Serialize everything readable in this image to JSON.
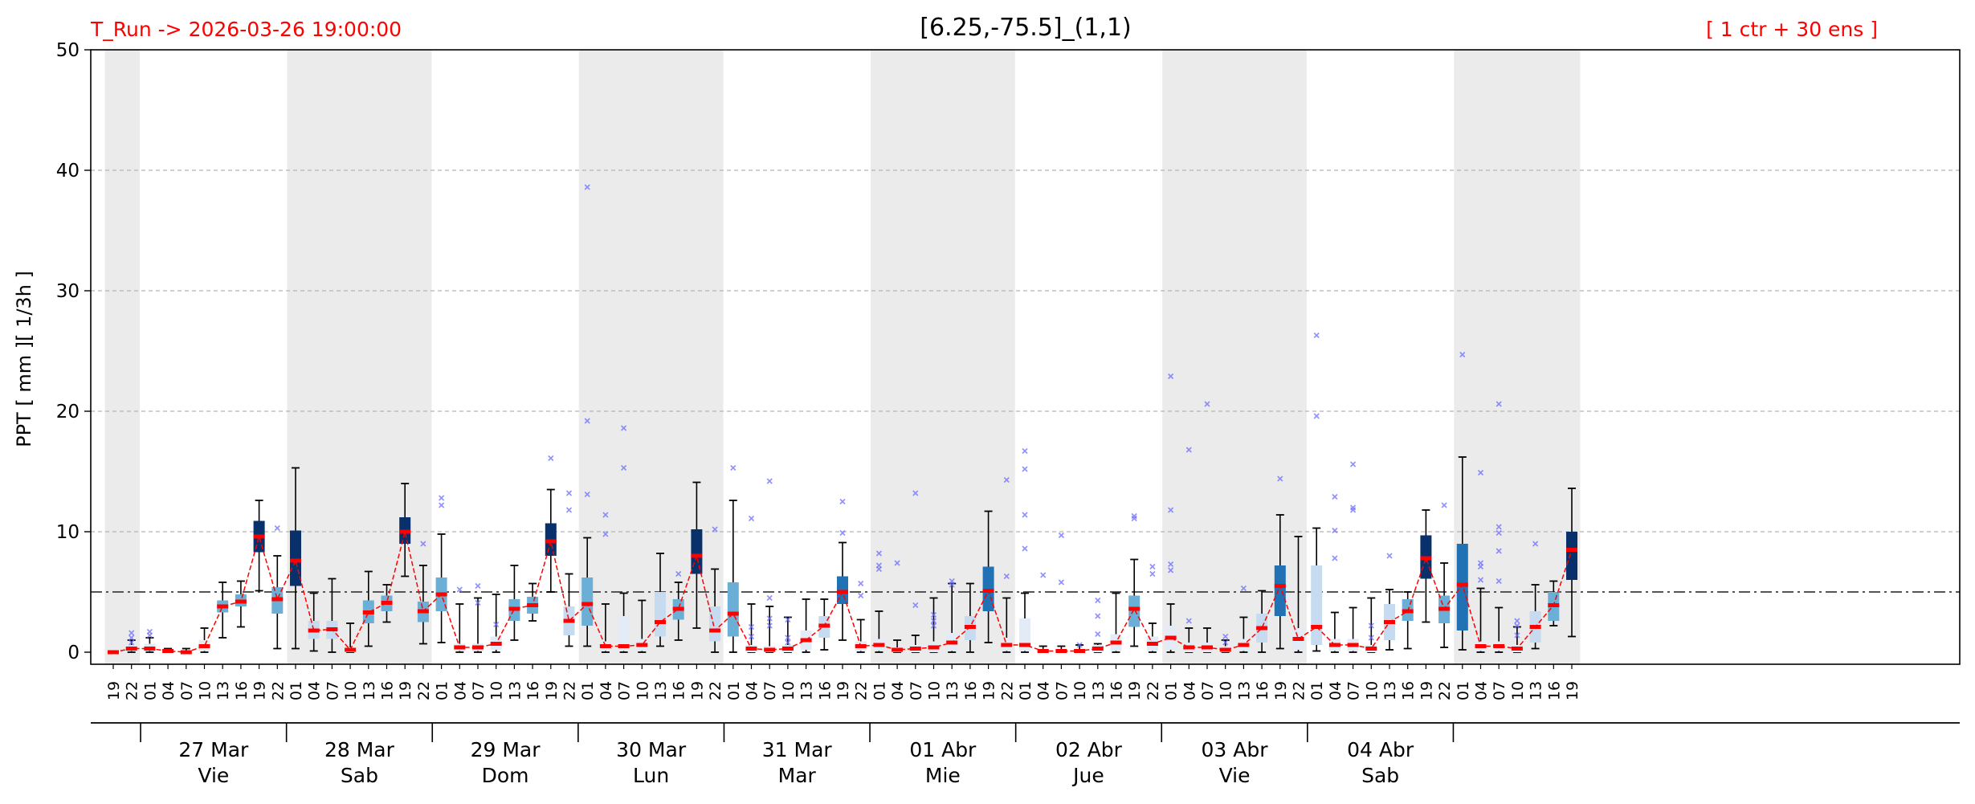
{
  "header": {
    "run_label": "T_Run -> 2026-03-26  19:00:00",
    "title": "[6.25,-75.5]_(1,1)",
    "ensemble_label": "[ 1 ctr + 30 ens ]"
  },
  "colors": {
    "run_label": "#ff0000",
    "night_shade": "#ebebeb",
    "median_line": "#ff0000",
    "outlier": "#6b6bff",
    "threshold": "#555555"
  },
  "chart_data": {
    "type": "box",
    "ylabel": "PPT  [ mm ][ 1/3h ]",
    "ylim": [
      -1,
      50
    ],
    "yticks": [
      0,
      10,
      20,
      30,
      40,
      50
    ],
    "threshold": 5,
    "grid": "horizontal-dashed",
    "hours": [
      "19",
      "22",
      "01",
      "04",
      "07",
      "10",
      "13",
      "16",
      "19",
      "22",
      "01",
      "04",
      "07",
      "10",
      "13",
      "16",
      "19",
      "22",
      "01",
      "04",
      "07",
      "10",
      "13",
      "16",
      "19",
      "22",
      "01",
      "04",
      "07",
      "10",
      "13",
      "16",
      "19",
      "22",
      "01",
      "04",
      "07",
      "10",
      "13",
      "16",
      "19",
      "22",
      "01",
      "04",
      "07",
      "10",
      "13",
      "16",
      "19",
      "22",
      "01",
      "04",
      "07",
      "10",
      "13",
      "16",
      "19",
      "22",
      "01",
      "04",
      "07",
      "10",
      "13",
      "16",
      "19",
      "22",
      "01",
      "04",
      "07",
      "10",
      "13",
      "16",
      "19",
      "22",
      "01",
      "04",
      "07",
      "10",
      "13",
      "16",
      "19"
    ],
    "days": [
      {
        "date": "27 Mar",
        "weekday": "Vie"
      },
      {
        "date": "28 Mar",
        "weekday": "Sab"
      },
      {
        "date": "29 Mar",
        "weekday": "Dom"
      },
      {
        "date": "30 Mar",
        "weekday": "Lun"
      },
      {
        "date": "31 Mar",
        "weekday": "Mar"
      },
      {
        "date": "01 Abr",
        "weekday": "Mie"
      },
      {
        "date": "02 Abr",
        "weekday": "Jue"
      },
      {
        "date": "03 Abr",
        "weekday": "Vie"
      },
      {
        "date": "04 Abr",
        "weekday": "Sab"
      }
    ],
    "median": [
      0.0,
      0.3,
      0.3,
      0.1,
      0.0,
      0.5,
      3.8,
      4.2,
      9.6,
      4.4,
      7.6,
      1.8,
      1.9,
      0.2,
      3.3,
      4.1,
      10.0,
      3.4,
      4.8,
      0.4,
      0.4,
      0.7,
      3.6,
      3.9,
      9.2,
      2.6,
      4.0,
      0.5,
      0.5,
      0.6,
      2.5,
      3.6,
      8.0,
      1.8,
      3.2,
      0.3,
      0.2,
      0.3,
      1.0,
      2.2,
      5.0,
      0.5,
      0.6,
      0.2,
      0.3,
      0.4,
      0.8,
      2.1,
      5.1,
      0.6,
      0.6,
      0.1,
      0.1,
      0.1,
      0.3,
      0.8,
      3.6,
      0.7,
      1.2,
      0.4,
      0.4,
      0.2,
      0.6,
      2.0,
      5.5,
      1.1,
      2.1,
      0.6,
      0.6,
      0.3,
      2.5,
      3.4,
      7.8,
      3.6,
      5.6,
      0.5,
      0.5,
      0.3,
      2.1,
      3.9,
      8.5
    ],
    "q1": [
      0.0,
      0.1,
      0.1,
      0.0,
      0.0,
      0.1,
      3.3,
      3.8,
      8.3,
      3.2,
      5.5,
      1.1,
      1.1,
      0.0,
      2.4,
      3.4,
      9.0,
      2.5,
      3.4,
      0.1,
      0.1,
      0.2,
      2.6,
      3.2,
      8.0,
      1.4,
      2.2,
      0.1,
      0.1,
      0.1,
      1.3,
      2.7,
      6.5,
      0.9,
      1.3,
      0.0,
      0.0,
      0.0,
      0.2,
      1.2,
      4.0,
      0.1,
      0.1,
      0.0,
      0.0,
      0.0,
      0.1,
      1.0,
      3.4,
      0.1,
      0.1,
      0.0,
      0.0,
      0.0,
      0.0,
      0.1,
      2.1,
      0.1,
      0.2,
      0.0,
      0.0,
      0.0,
      0.1,
      0.8,
      3.0,
      0.2,
      0.6,
      0.1,
      0.1,
      0.0,
      1.0,
      2.6,
      6.1,
      2.4,
      1.8,
      0.1,
      0.1,
      0.0,
      0.8,
      2.6,
      6.0
    ],
    "q3": [
      0.0,
      0.6,
      0.7,
      0.2,
      0.1,
      1.0,
      4.3,
      4.8,
      10.9,
      5.4,
      10.1,
      2.6,
      2.6,
      0.4,
      4.3,
      4.7,
      11.2,
      4.2,
      6.2,
      0.7,
      0.7,
      1.3,
      4.4,
      4.6,
      10.7,
      3.8,
      6.2,
      0.9,
      3.0,
      1.1,
      5.0,
      4.4,
      10.2,
      3.8,
      5.8,
      0.6,
      0.5,
      0.6,
      1.8,
      3.0,
      6.3,
      0.9,
      1.1,
      0.4,
      0.6,
      0.9,
      1.6,
      3.0,
      7.1,
      1.2,
      2.8,
      0.2,
      0.2,
      0.2,
      0.6,
      1.5,
      4.7,
      1.3,
      2.2,
      0.8,
      0.8,
      0.5,
      1.1,
      3.2,
      7.2,
      2.0,
      7.2,
      1.1,
      1.1,
      0.6,
      4.0,
      4.4,
      9.7,
      4.7,
      9.0,
      0.9,
      0.9,
      0.6,
      3.4,
      5.0,
      10.0
    ],
    "whisker_low": [
      0.0,
      0.0,
      0.0,
      0.0,
      0.0,
      0.0,
      1.2,
      2.1,
      5.1,
      0.3,
      0.3,
      0.1,
      0.0,
      0.0,
      0.5,
      2.5,
      6.3,
      0.7,
      0.8,
      0.0,
      0.0,
      0.0,
      1.0,
      2.6,
      5.0,
      0.5,
      0.5,
      0.0,
      0.0,
      0.0,
      0.5,
      1.0,
      2.0,
      0.0,
      0.0,
      0.0,
      0.0,
      0.0,
      0.0,
      0.2,
      1.0,
      0.0,
      0.0,
      0.0,
      0.0,
      0.0,
      0.0,
      0.0,
      0.8,
      0.0,
      0.0,
      0.0,
      0.0,
      0.0,
      0.0,
      0.0,
      0.5,
      0.0,
      0.0,
      0.0,
      0.0,
      0.0,
      0.0,
      0.0,
      0.3,
      0.0,
      0.1,
      0.0,
      0.0,
      0.0,
      0.2,
      0.3,
      2.5,
      0.4,
      0.2,
      0.0,
      0.0,
      0.0,
      0.3,
      2.2,
      1.3
    ],
    "whisker_high": [
      0.1,
      1.0,
      1.2,
      0.3,
      0.3,
      2.0,
      5.8,
      5.9,
      12.6,
      8.0,
      15.3,
      4.9,
      6.1,
      2.4,
      6.7,
      5.6,
      14.0,
      7.2,
      9.8,
      4.0,
      4.5,
      4.8,
      7.2,
      5.7,
      13.5,
      6.5,
      9.5,
      4.0,
      4.9,
      4.3,
      8.2,
      5.8,
      14.1,
      6.9,
      12.6,
      4.0,
      3.8,
      2.9,
      4.4,
      4.4,
      9.1,
      2.7,
      3.4,
      1.0,
      1.4,
      4.5,
      5.7,
      5.7,
      11.7,
      4.5,
      4.9,
      0.5,
      0.5,
      0.6,
      0.7,
      4.9,
      7.7,
      2.4,
      4.0,
      2.0,
      2.0,
      1.0,
      2.9,
      5.1,
      11.4,
      9.6,
      10.3,
      3.3,
      3.7,
      4.5,
      5.2,
      5.0,
      11.8,
      7.4,
      16.2,
      5.3,
      3.7,
      2.1,
      5.6,
      5.9,
      13.6
    ],
    "outliers": [
      [],
      [
        0.8,
        1.2,
        1.6
      ],
      [
        1.4,
        1.7
      ],
      [],
      [],
      [],
      [],
      [],
      [],
      [
        10.3
      ],
      [],
      [],
      [],
      [],
      [],
      [],
      [],
      [
        9.0
      ],
      [
        12.2,
        12.8
      ],
      [
        5.2
      ],
      [
        5.5,
        4.1
      ],
      [
        2.3
      ],
      [],
      [],
      [
        16.1
      ],
      [
        11.8,
        13.2
      ],
      [
        19.2,
        38.6,
        13.1
      ],
      [
        11.4,
        9.8
      ],
      [
        15.3,
        18.6
      ],
      [],
      [],
      [
        6.5
      ],
      [],
      [
        10.2
      ],
      [
        15.3
      ],
      [
        11.1,
        2.1,
        1.3
      ],
      [
        14.2,
        2.8,
        4.5,
        2.2
      ],
      [
        2.7,
        1.2,
        0.8
      ],
      [],
      [],
      [
        9.9,
        12.5
      ],
      [
        4.7,
        5.7
      ],
      [
        6.9,
        7.2,
        8.2
      ],
      [
        7.4
      ],
      [
        3.9,
        13.2
      ],
      [
        2.2,
        2.6,
        3.1
      ],
      [
        5.6,
        5.9
      ],
      [],
      [],
      [
        14.3,
        6.3
      ],
      [
        11.4,
        16.7,
        15.2,
        8.6
      ],
      [
        6.4
      ],
      [
        5.8,
        9.7
      ],
      [
        0.6
      ],
      [
        1.5,
        3.0,
        4.3
      ],
      [],
      [
        11.3,
        11.1
      ],
      [
        6.5,
        7.1
      ],
      [
        22.9,
        7.3,
        11.8,
        6.8
      ],
      [
        16.8,
        2.6
      ],
      [
        20.6
      ],
      [
        1.3,
        0.8
      ],
      [
        5.3
      ],
      [],
      [
        14.4
      ],
      [],
      [
        26.3,
        19.6
      ],
      [
        12.9,
        10.1,
        7.8
      ],
      [
        11.8,
        15.6,
        12.0
      ],
      [
        1.2,
        2.2
      ],
      [
        8.0
      ],
      [],
      [],
      [
        12.2
      ],
      [
        24.7
      ],
      [
        14.9,
        6.0,
        7.1,
        7.4
      ],
      [
        20.6,
        10.4,
        9.9,
        5.9,
        8.4
      ],
      [
        1.4,
        2.2,
        2.6
      ],
      [
        9.0
      ],
      [],
      []
    ]
  }
}
